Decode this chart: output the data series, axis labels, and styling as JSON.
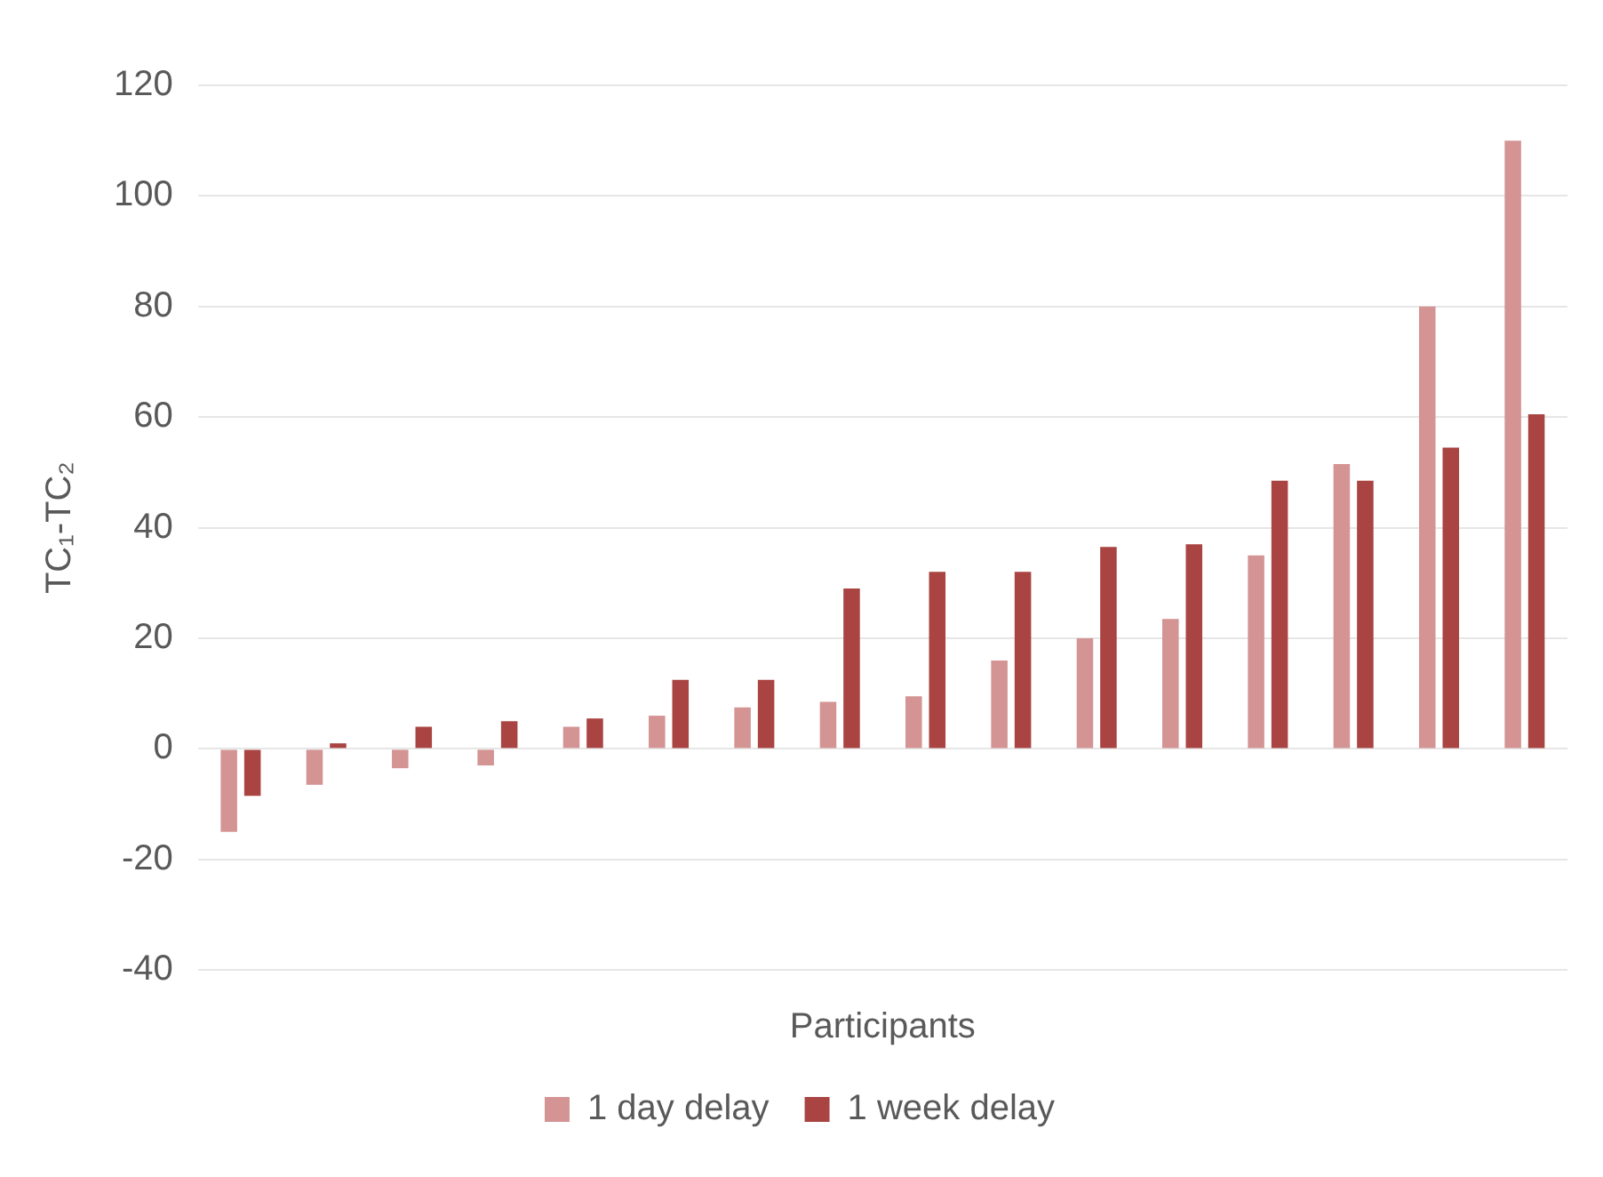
{
  "chart_data": {
    "type": "bar",
    "xlabel": "Participants",
    "ylabel": "TC₁-TC₂",
    "categories": [
      null,
      null,
      null,
      null,
      null,
      null,
      null,
      null,
      null,
      null,
      null,
      null,
      null,
      null,
      null,
      null
    ],
    "series": [
      {
        "name": "1 day delay",
        "color": "#d49494",
        "values": [
          -15,
          -6.5,
          -3.5,
          -3,
          4,
          6,
          7.5,
          8.5,
          9.5,
          16,
          20,
          23.5,
          35,
          51.5,
          80,
          110
        ]
      },
      {
        "name": "1 week delay",
        "color": "#a94442",
        "values": [
          -8.5,
          1,
          4,
          5,
          5.5,
          12.5,
          12.5,
          29,
          32,
          32,
          36.5,
          37,
          48.5,
          48.5,
          54.5,
          60.5
        ]
      }
    ],
    "ylim": [
      -40,
      120
    ],
    "yticks": [
      -40,
      -20,
      0,
      20,
      40,
      60,
      80,
      100,
      120
    ],
    "grid": "y",
    "legend": "bottom"
  }
}
